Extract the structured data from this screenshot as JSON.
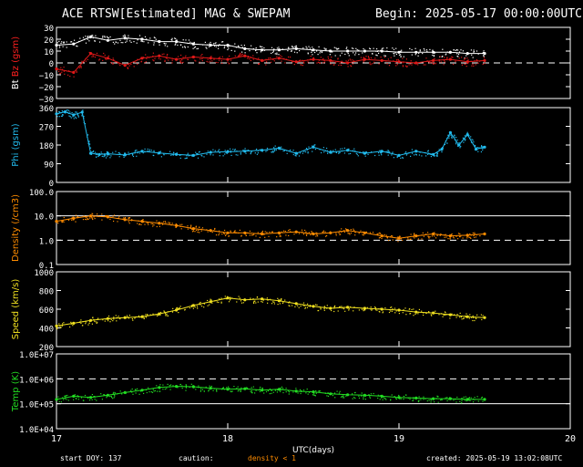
{
  "header": {
    "title": "ACE RTSW[Estimated] MAG & SWEPAM",
    "begin": "Begin: 2025-05-17 00:00:00UTC"
  },
  "footer": {
    "start_doy": "start DOY: 137",
    "caution_label": "caution:",
    "caution_note": "density < 1",
    "caution_color": "#ff8c00",
    "created": "created: 2025-05-19 13:02:08UTC"
  },
  "xaxis": {
    "label": "UTC(days)",
    "ticks": [
      17,
      18,
      19,
      20
    ],
    "tick_labels": [
      "17",
      "18",
      "19",
      "20"
    ],
    "range": [
      17,
      20
    ]
  },
  "chart_data": [
    {
      "type": "line",
      "id": "mag",
      "ylabel_parts": [
        {
          "text": "Bt",
          "color": "#ffffff"
        },
        {
          "text": " Bz",
          "color": "#ff2020"
        },
        {
          "text": " (gsm)",
          "color": "#ff2020"
        }
      ],
      "ylim": [
        -30,
        30
      ],
      "yticks": [
        30,
        20,
        10,
        0,
        -10,
        -20,
        -30
      ],
      "ytick_labels": [
        "30",
        "20",
        "10",
        "0",
        "−10",
        "−20",
        "−30"
      ],
      "reference_lines": [
        {
          "value": 0,
          "style": "dashed"
        }
      ],
      "series": [
        {
          "name": "Bt",
          "color": "#ffffff",
          "x": [
            17.0,
            17.1,
            17.2,
            17.3,
            17.4,
            17.5,
            17.6,
            17.7,
            17.8,
            17.9,
            18.0,
            18.1,
            18.2,
            18.3,
            18.4,
            18.5,
            18.6,
            18.7,
            18.8,
            18.9,
            19.0,
            19.1,
            19.2,
            19.3,
            19.4,
            19.5
          ],
          "y": [
            15,
            16,
            22,
            19,
            21,
            20,
            18,
            18,
            16,
            15,
            15,
            12,
            11,
            11,
            12,
            11,
            10,
            10,
            10,
            10,
            9,
            9,
            9,
            9,
            8,
            8
          ]
        },
        {
          "name": "Bz",
          "color": "#e01818",
          "x": [
            17.0,
            17.1,
            17.2,
            17.3,
            17.4,
            17.5,
            17.6,
            17.7,
            17.8,
            17.9,
            18.0,
            18.1,
            18.2,
            18.3,
            18.4,
            18.5,
            18.6,
            18.7,
            18.8,
            18.9,
            19.0,
            19.1,
            19.2,
            19.3,
            19.4,
            19.5
          ],
          "y": [
            -5,
            -8,
            8,
            4,
            -2,
            4,
            6,
            3,
            5,
            4,
            3,
            6,
            2,
            4,
            1,
            3,
            2,
            0,
            3,
            2,
            1,
            0,
            2,
            3,
            1,
            2
          ]
        }
      ]
    },
    {
      "type": "scatter",
      "id": "phi",
      "ylabel_parts": [
        {
          "text": "Phi (gsm)",
          "color": "#22bbee"
        }
      ],
      "ylim": [
        0,
        360
      ],
      "yticks": [
        360,
        270,
        180,
        90,
        0
      ],
      "ytick_labels": [
        "360",
        "270",
        "180",
        "90",
        "0"
      ],
      "reference_lines": [],
      "series": [
        {
          "name": "Phi",
          "color": "#22bbee",
          "x": [
            17.0,
            17.05,
            17.1,
            17.15,
            17.2,
            17.25,
            17.3,
            17.4,
            17.5,
            17.6,
            17.7,
            17.8,
            17.9,
            18.0,
            18.1,
            18.2,
            18.3,
            18.4,
            18.5,
            18.6,
            18.7,
            18.8,
            18.9,
            19.0,
            19.1,
            19.2,
            19.25,
            19.3,
            19.35,
            19.4,
            19.45,
            19.5
          ],
          "y": [
            330,
            340,
            325,
            338,
            140,
            135,
            138,
            132,
            150,
            142,
            135,
            130,
            145,
            148,
            150,
            155,
            165,
            140,
            170,
            145,
            155,
            140,
            150,
            130,
            150,
            135,
            160,
            240,
            180,
            230,
            160,
            170
          ]
        }
      ]
    },
    {
      "type": "scatter",
      "id": "density",
      "yscale": "log",
      "ylabel_parts": [
        {
          "text": "Density (/cm3)",
          "color": "#ff8c00"
        }
      ],
      "ylim": [
        0.1,
        100
      ],
      "yticks": [
        100,
        10,
        1,
        0.1
      ],
      "ytick_labels": [
        "100.0",
        "10.0",
        "1.0",
        "0.1"
      ],
      "reference_lines": [
        {
          "value": 10,
          "style": "solid"
        },
        {
          "value": 1,
          "style": "dashed"
        }
      ],
      "series": [
        {
          "name": "Density",
          "color": "#ff8c00",
          "x": [
            17.0,
            17.1,
            17.2,
            17.3,
            17.4,
            17.5,
            17.6,
            17.7,
            17.8,
            17.9,
            18.0,
            18.1,
            18.2,
            18.3,
            18.4,
            18.5,
            18.6,
            18.7,
            18.8,
            18.9,
            19.0,
            19.1,
            19.2,
            19.3,
            19.4,
            19.5
          ],
          "y": [
            6.0,
            8.0,
            10.0,
            9.0,
            7.0,
            6.0,
            5.0,
            4.0,
            3.0,
            2.5,
            2.0,
            2.0,
            1.8,
            2.0,
            2.2,
            1.8,
            2.0,
            2.5,
            2.0,
            1.5,
            1.2,
            1.5,
            1.8,
            1.5,
            1.6,
            1.8
          ]
        }
      ]
    },
    {
      "type": "scatter",
      "id": "speed",
      "ylabel_parts": [
        {
          "text": "Speed (km/s)",
          "color": "#f0e020"
        }
      ],
      "ylim": [
        200,
        1000
      ],
      "yticks": [
        1000,
        800,
        600,
        400,
        200
      ],
      "ytick_labels": [
        "1000",
        "800",
        "600",
        "400",
        "200"
      ],
      "reference_lines": [],
      "series": [
        {
          "name": "Speed",
          "color": "#f0e020",
          "x": [
            17.0,
            17.1,
            17.2,
            17.3,
            17.4,
            17.5,
            17.6,
            17.7,
            17.8,
            17.9,
            18.0,
            18.1,
            18.2,
            18.3,
            18.4,
            18.5,
            18.6,
            18.7,
            18.8,
            18.9,
            19.0,
            19.1,
            19.2,
            19.3,
            19.4,
            19.5
          ],
          "y": [
            420,
            450,
            480,
            500,
            510,
            520,
            550,
            590,
            640,
            680,
            720,
            700,
            710,
            690,
            660,
            630,
            610,
            620,
            610,
            600,
            590,
            570,
            560,
            540,
            520,
            510
          ]
        }
      ]
    },
    {
      "type": "scatter",
      "id": "temp",
      "yscale": "log",
      "ylabel_parts": [
        {
          "text": "Temp (K)",
          "color": "#22dd22"
        }
      ],
      "ylim": [
        10000,
        10000000
      ],
      "yticks": [
        10000000,
        1000000,
        100000,
        10000
      ],
      "ytick_labels": [
        "1.0E+07",
        "1.0E+06",
        "1.0E+05",
        "1.0E+04"
      ],
      "reference_lines": [
        {
          "value": 1000000,
          "style": "dashed"
        },
        {
          "value": 100000,
          "style": "solid"
        }
      ],
      "series": [
        {
          "name": "Temp",
          "color": "#22dd22",
          "x": [
            17.0,
            17.1,
            17.2,
            17.3,
            17.4,
            17.5,
            17.6,
            17.7,
            17.8,
            17.9,
            18.0,
            18.1,
            18.2,
            18.3,
            18.4,
            18.5,
            18.6,
            18.7,
            18.8,
            18.9,
            19.0,
            19.1,
            19.2,
            19.3,
            19.4,
            19.5
          ],
          "y": [
            150000,
            200000,
            180000,
            220000,
            280000,
            350000,
            450000,
            500000,
            480000,
            420000,
            380000,
            400000,
            350000,
            380000,
            320000,
            300000,
            250000,
            230000,
            220000,
            200000,
            180000,
            170000,
            160000,
            160000,
            150000,
            150000
          ]
        }
      ]
    }
  ]
}
